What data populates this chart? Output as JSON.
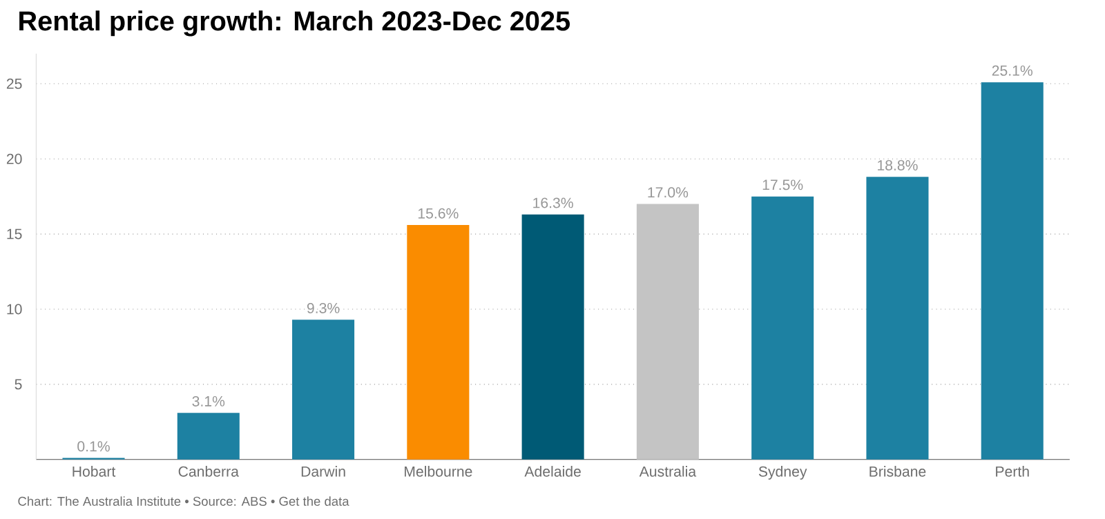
{
  "chart_data": {
    "type": "bar",
    "title": "Rental price growth: March 2023-Dec 2025",
    "categories": [
      "Hobart",
      "Canberra",
      "Darwin",
      "Melbourne",
      "Adelaide",
      "Australia",
      "Sydney",
      "Brisbane",
      "Perth"
    ],
    "values": [
      0.1,
      3.1,
      9.3,
      15.6,
      16.3,
      17.0,
      17.5,
      18.8,
      25.1
    ],
    "colors": [
      "#1d81a2",
      "#1d81a2",
      "#1d81a2",
      "#fa8c00",
      "#005a75",
      "#c4c4c4",
      "#1d81a2",
      "#1d81a2",
      "#1d81a2"
    ],
    "value_labels": [
      "0.1%",
      "3.1%",
      "9.3%",
      "15.6%",
      "16.3%",
      "17.0%",
      "17.5%",
      "18.8%",
      "25.1%"
    ],
    "ylim": [
      0,
      27
    ],
    "yticks": [
      5,
      10,
      15,
      20,
      25
    ],
    "grid": "y",
    "annotations": [
      "Chart: The Australia Institute • Source: ABS • Get the data"
    ]
  }
}
